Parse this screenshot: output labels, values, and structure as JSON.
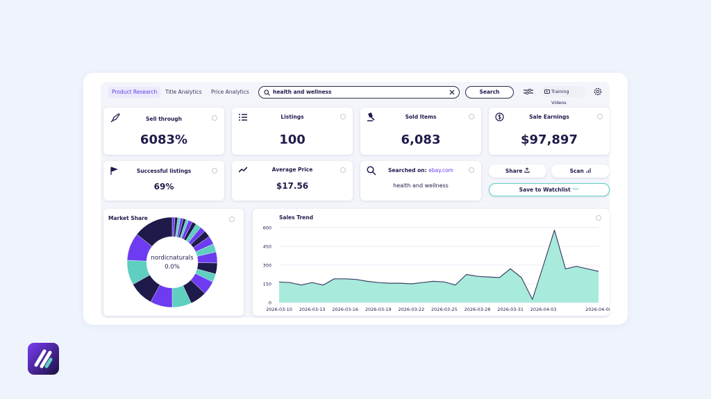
{
  "tabs": [
    "Product Research",
    "Title Analytics",
    "Price Analytics"
  ],
  "search": {
    "query": "health and wellness",
    "button": "Search"
  },
  "training": "Training Videos",
  "stats": [
    {
      "label": "Sell through",
      "value": "6083%"
    },
    {
      "label": "Listings",
      "value": "100"
    },
    {
      "label": "Sold Items",
      "value": "6,083"
    },
    {
      "label": "Sale Earnings",
      "value": "$97,897"
    },
    {
      "label": "Successful listings",
      "value": "69%"
    },
    {
      "label": "Average Price",
      "value": "$17.56"
    }
  ],
  "searched_on": {
    "label": "Searched on:",
    "site": "ebay.com",
    "query": "health and wellness"
  },
  "actions": {
    "share": "Share",
    "scan": "Scan",
    "watchlist": "Save to Watchlist"
  },
  "market_share": {
    "type": "pie",
    "title": "Market Share",
    "center_name": "nordicnaturals",
    "center_value": "0.0%",
    "values": [
      1,
      1,
      1,
      1,
      1,
      1,
      1.5,
      1.5,
      2,
      2,
      2.5,
      3,
      3,
      4,
      4,
      3,
      5,
      6,
      7,
      8,
      9,
      9,
      10,
      14.5
    ],
    "colors": [
      "#6d3cf0",
      "#1e1b4b",
      "#5ecfc0",
      "#6d3cf0",
      "#1e1b4b",
      "#5ecfc0",
      "#6d3cf0",
      "#1e1b4b",
      "#5ecfc0",
      "#6d3cf0",
      "#1e1b4b",
      "#6d3cf0",
      "#5ecfc0",
      "#6d3cf0",
      "#1e1b4b",
      "#5ecfc0",
      "#6d3cf0",
      "#1e1b4b",
      "#5ecfc0",
      "#6d3cf0",
      "#1e1b4b",
      "#5ecfc0",
      "#6d3cf0",
      "#1e1b4b"
    ]
  },
  "sales_trend": {
    "type": "line",
    "title": "Sales Trend",
    "x": [
      "2026-03-10",
      "2026-03-11",
      "2026-03-12",
      "2026-03-13",
      "2026-03-14",
      "2026-03-15",
      "2026-03-16",
      "2026-03-17",
      "2026-03-18",
      "2026-03-19",
      "2026-03-20",
      "2026-03-21",
      "2026-03-22",
      "2026-03-23",
      "2026-03-24",
      "2026-03-25",
      "2026-03-26",
      "2026-03-27",
      "2026-03-28",
      "2026-03-29",
      "2026-03-30",
      "2026-03-31",
      "2026-04-01",
      "2026-04-02",
      "2026-04-03",
      "2026-04-04",
      "2026-04-05",
      "2026-04-06",
      "2026-04-07",
      "2026-04-08"
    ],
    "values": [
      165,
      160,
      140,
      160,
      140,
      190,
      190,
      185,
      170,
      160,
      155,
      155,
      150,
      160,
      170,
      165,
      140,
      225,
      210,
      205,
      200,
      270,
      200,
      25,
      300,
      580,
      270,
      290,
      270,
      250
    ],
    "color": "#a8eadc",
    "line_color": "#3d4266",
    "ylim": [
      0,
      600
    ],
    "yticks": [
      0,
      150,
      300,
      450,
      600
    ],
    "xticks": [
      "2026-03-10",
      "2026-03-13",
      "2026-03-16",
      "2026-03-19",
      "2026-03-22",
      "2026-03-25",
      "2026-03-28",
      "2026-03-31",
      "2026-04-03",
      "2026-04-08"
    ],
    "grid": true
  }
}
